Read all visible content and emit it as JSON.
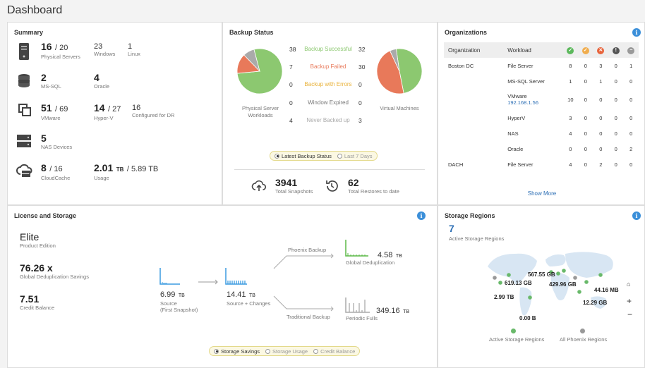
{
  "page_title": "Dashboard",
  "summary": {
    "title": "Summary",
    "physical_servers": {
      "value": "16",
      "total": "/ 20",
      "label": "Physical Servers"
    },
    "windows": {
      "value": "23",
      "label": "Windows"
    },
    "linux": {
      "value": "1",
      "label": "Linux"
    },
    "mssql": {
      "value": "2",
      "label": "MS-SQL"
    },
    "oracle": {
      "value": "4",
      "label": "Oracle"
    },
    "vmware": {
      "value": "51",
      "total": "/ 69",
      "label": "VMware"
    },
    "hyperv": {
      "value": "14",
      "total": "/ 27",
      "label": "Hyper-V"
    },
    "dr": {
      "value": "16",
      "label": "Configured for DR"
    },
    "nas": {
      "value": "5",
      "label": "NAS Devices"
    },
    "cloudcache": {
      "value": "8",
      "total": "/ 16",
      "label": "CloudCache"
    },
    "usage": {
      "value": "2.01",
      "unit": "TB",
      "total": "/ 5.89 TB",
      "label": "Usage"
    }
  },
  "backup_status": {
    "title": "Backup Status",
    "rows": [
      {
        "label": "Backup Successful",
        "left": "38",
        "right": "32",
        "color": "#8cc870"
      },
      {
        "label": "Backup Failed",
        "left": "7",
        "right": "30",
        "color": "#e8795a"
      },
      {
        "label": "Backup with Errors",
        "left": "0",
        "right": "0",
        "color": "#e9b23a"
      },
      {
        "label": "Window Expired",
        "left": "0",
        "right": "0",
        "color": "#777777"
      },
      {
        "label": "Never Backed up",
        "left": "4",
        "right": "3",
        "color": "#aaaaaa"
      }
    ],
    "left_pie_label": "Physical Server Workloads",
    "right_pie_label": "Virtual Machines",
    "radio_latest": "Latest Backup Status",
    "radio_7days": "Last 7 Days",
    "snapshots": {
      "value": "3941",
      "label": "Total Snapshots"
    },
    "restores": {
      "value": "62",
      "label": "Total Restores to date"
    }
  },
  "organizations": {
    "title": "Organizations",
    "col_org": "Organization",
    "col_workload": "Workload",
    "rows": [
      {
        "org": "Boston DC",
        "workload": "File Server",
        "sub": "",
        "v": [
          "8",
          "0",
          "3",
          "0",
          "1"
        ]
      },
      {
        "org": "",
        "workload": "MS-SQL Server",
        "sub": "",
        "v": [
          "1",
          "0",
          "1",
          "0",
          "0"
        ]
      },
      {
        "org": "",
        "workload": "VMware",
        "sub": "192.168.1.56",
        "v": [
          "10",
          "0",
          "0",
          "0",
          "0"
        ]
      },
      {
        "org": "",
        "workload": "HyperV",
        "sub": "",
        "v": [
          "3",
          "0",
          "0",
          "0",
          "0"
        ]
      },
      {
        "org": "",
        "workload": "NAS",
        "sub": "",
        "v": [
          "4",
          "0",
          "0",
          "0",
          "0"
        ]
      },
      {
        "org": "",
        "workload": "Oracle",
        "sub": "",
        "v": [
          "0",
          "0",
          "0",
          "0",
          "2"
        ]
      },
      {
        "org": "DACH",
        "workload": "File Server",
        "sub": "",
        "v": [
          "4",
          "0",
          "2",
          "0",
          "0"
        ]
      }
    ],
    "show_more": "Show More"
  },
  "license": {
    "title": "License and Storage",
    "edition": "Elite",
    "edition_label": "Product Edition",
    "dedup": "76.26 x",
    "dedup_label": "Global Deduplication Savings",
    "credit": "7.51",
    "credit_label": "Credit Balance",
    "source": "6.99",
    "source_unit": "TB",
    "source_label": "Source",
    "source_sub": "(First Snapshot)",
    "changes": "14.41",
    "changes_unit": "TB",
    "changes_label": "Source + Changes",
    "phoenix_backup": "Phoenix Backup",
    "traditional_backup": "Traditional Backup",
    "global_dedup": "4.58",
    "global_dedup_unit": "TB",
    "global_dedup_label": "Global Deduplication",
    "periodic": "349.16",
    "periodic_unit": "TB",
    "periodic_label": "Periodic Fulls",
    "radio_savings": "Storage Savings",
    "radio_usage": "Storage Usage",
    "radio_credit": "Credit Balance"
  },
  "regions": {
    "title": "Storage Regions",
    "count": "7",
    "count_label": "Active Storage Regions",
    "labels": [
      "567.55 GB",
      "619.13 GB",
      "429.96 GB",
      "44.16 MB",
      "2.99 TB",
      "12.29 GB",
      "0.00 B"
    ],
    "legend_active": "Active Storage Regions",
    "legend_all": "All Phoenix Regions"
  },
  "chart_data": [
    {
      "type": "pie",
      "title": "",
      "categories": [
        "Backup Successful",
        "Backup Failed",
        "Backup with Errors",
        "Window Expired",
        "Never Backed up"
      ],
      "values": [
        38,
        7,
        0,
        0,
        4
      ],
      "xlabel": "Physical Server Workloads"
    },
    {
      "type": "pie",
      "title": "",
      "categories": [
        "Backup Successful",
        "Backup Failed",
        "Backup with Errors",
        "Window Expired",
        "Never Backed up"
      ],
      "values": [
        32,
        30,
        0,
        0,
        3
      ],
      "xlabel": "Virtual Machines"
    }
  ]
}
